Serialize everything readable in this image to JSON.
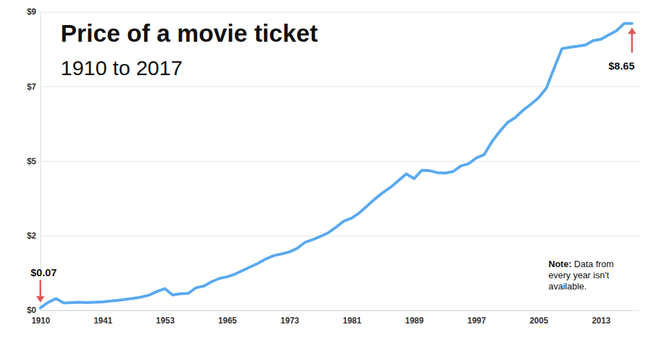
{
  "chart_data": {
    "type": "line",
    "title": "Price of a movie ticket",
    "subtitle": "1910 to 2017",
    "categories": [
      "1910",
      null,
      null,
      null,
      null,
      null,
      null,
      null,
      "1941",
      null,
      null,
      null,
      null,
      null,
      null,
      null,
      "1953",
      null,
      null,
      null,
      null,
      null,
      null,
      null,
      "1965",
      null,
      null,
      null,
      null,
      null,
      null,
      null,
      "1973",
      null,
      null,
      null,
      null,
      null,
      null,
      null,
      "1981",
      null,
      null,
      null,
      null,
      null,
      null,
      null,
      "1989",
      null,
      null,
      null,
      null,
      null,
      null,
      null,
      "1997",
      null,
      null,
      null,
      null,
      null,
      null,
      null,
      "2005",
      null,
      null,
      null,
      null,
      null,
      null,
      null,
      "2013",
      null,
      null,
      null,
      null
    ],
    "values": [
      0.07,
      0.24,
      0.35,
      0.22,
      0.23,
      0.24,
      0.23,
      0.24,
      0.25,
      0.28,
      0.3,
      0.33,
      0.36,
      0.4,
      0.46,
      0.57,
      0.65,
      0.46,
      0.5,
      0.51,
      0.68,
      0.73,
      0.86,
      0.96,
      1.01,
      1.09,
      1.2,
      1.31,
      1.42,
      1.55,
      1.65,
      1.7,
      1.76,
      1.87,
      2.05,
      2.13,
      2.23,
      2.34,
      2.51,
      2.69,
      2.78,
      2.94,
      3.15,
      3.36,
      3.55,
      3.71,
      3.91,
      4.11,
      3.97,
      4.22,
      4.21,
      4.15,
      4.14,
      4.18,
      4.35,
      4.42,
      4.59,
      4.69,
      5.08,
      5.39,
      5.66,
      5.81,
      6.03,
      6.21,
      6.41,
      6.7,
      7.3,
      7.89,
      7.93,
      7.96,
      8.0,
      8.13,
      8.17,
      8.3,
      8.43,
      8.65,
      8.65
    ],
    "color": "#5aa9f0",
    "ylim": [
      0,
      9
    ],
    "yticks": [
      {
        "value": 0,
        "label": "$0"
      },
      {
        "value": 2.25,
        "label": "$2"
      },
      {
        "value": 4.5,
        "label": "$5"
      },
      {
        "value": 6.75,
        "label": "$7"
      },
      {
        "value": 9,
        "label": "$9"
      }
    ],
    "grid": true,
    "annotations": [
      {
        "text": "$0.07"
      },
      {
        "text": "$8.65"
      }
    ],
    "note": {
      "label": "Note:",
      "text": "Data from every year isn't available."
    }
  }
}
